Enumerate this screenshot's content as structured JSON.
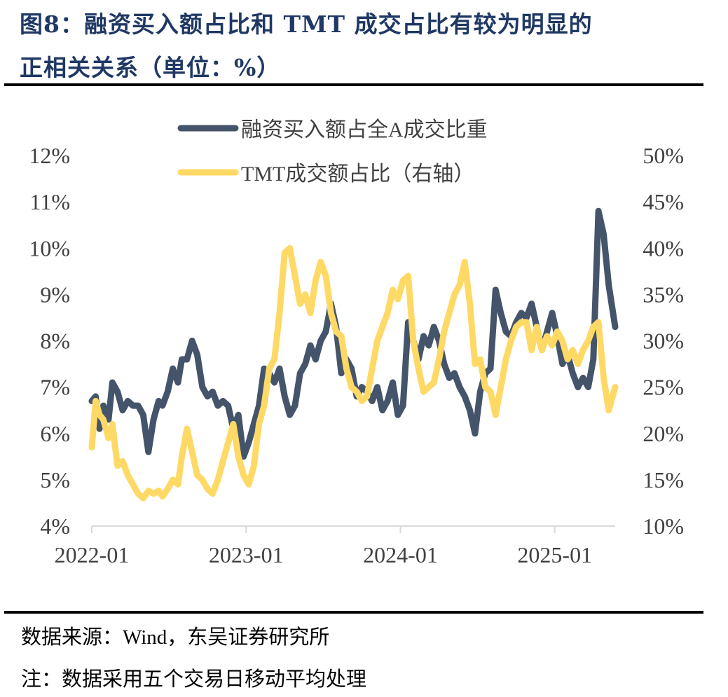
{
  "figure": {
    "title_line1": "图8：融资买入额占比和 TMT 成交占比有较为明显的",
    "title_line2": "正相关关系（单位：%）",
    "source": "数据来源：Wind，东吴证券研究所",
    "note": "注：数据采用五个交易日移动平均处理"
  },
  "colors": {
    "margin_series": "#44546a",
    "tmt_series": "#ffd966",
    "title": "#1f3864",
    "axis": "#d9d9d9",
    "tick_text": "#404040"
  },
  "chart_data": {
    "type": "line",
    "title": "融资买入额占比和 TMT 成交占比有较为明显的正相关关系（单位：%）",
    "xlabel": "",
    "ylabel": "",
    "x_ticks": [
      "2022-01",
      "2023-01",
      "2024-01",
      "2025-01"
    ],
    "x_range_months": [
      0,
      40.7
    ],
    "y_left": {
      "ticks": [
        "4%",
        "5%",
        "6%",
        "7%",
        "8%",
        "9%",
        "10%",
        "11%",
        "12%"
      ],
      "range": [
        4,
        12
      ]
    },
    "y_right": {
      "ticks": [
        "10%",
        "15%",
        "20%",
        "25%",
        "30%",
        "35%",
        "40%",
        "45%",
        "50%"
      ],
      "range": [
        10,
        50
      ]
    },
    "grid": false,
    "legend_position": "top-center",
    "series": [
      {
        "name": "融资买入额占全A成交比重",
        "axis": "left",
        "x_months": [
          0,
          0.3,
          0.6,
          0.9,
          1.3,
          1.6,
          2.0,
          2.4,
          2.8,
          3.2,
          3.6,
          4.0,
          4.4,
          4.8,
          5.2,
          5.5,
          5.9,
          6.3,
          6.7,
          7.0,
          7.4,
          7.8,
          8.2,
          8.6,
          9.0,
          9.4,
          9.8,
          10.2,
          10.6,
          11.0,
          11.4,
          11.8,
          12.2,
          12.6,
          13.0,
          13.4,
          13.8,
          14.2,
          14.6,
          15.0,
          15.4,
          15.8,
          16.2,
          16.6,
          17.0,
          17.4,
          17.8,
          18.2,
          18.6,
          19.0,
          19.4,
          19.8,
          20.2,
          20.6,
          21.0,
          21.4,
          21.8,
          22.2,
          22.6,
          23.0,
          23.4,
          23.8,
          24.2,
          24.6,
          25.0,
          25.4,
          25.8,
          26.2,
          26.6,
          27.0,
          27.4,
          27.8,
          28.2,
          28.6,
          29.0,
          29.4,
          29.8,
          30.2,
          30.6,
          31.0,
          31.4,
          31.8,
          32.2,
          32.6,
          33.0,
          33.4,
          33.8,
          34.2,
          34.6,
          35.0,
          35.4,
          35.8,
          36.2,
          36.6,
          37.0,
          37.4,
          37.8,
          38.2,
          38.6,
          39.0,
          39.4,
          39.8,
          40.2,
          40.7
        ],
        "values": [
          6.7,
          6.8,
          6.1,
          6.6,
          6.3,
          7.1,
          6.9,
          6.5,
          6.7,
          6.6,
          6.6,
          6.4,
          5.6,
          6.3,
          6.7,
          6.6,
          6.9,
          7.4,
          7.1,
          7.6,
          7.6,
          8.0,
          7.7,
          7.0,
          6.8,
          6.9,
          6.6,
          6.7,
          6.6,
          6.1,
          6.4,
          5.5,
          5.8,
          6.2,
          6.6,
          7.4,
          7.3,
          7.1,
          7.4,
          6.8,
          6.4,
          6.6,
          7.3,
          7.5,
          7.9,
          7.6,
          8.0,
          8.2,
          8.8,
          8.3,
          7.3,
          7.6,
          7.4,
          6.8,
          7.0,
          6.9,
          6.7,
          7.0,
          6.5,
          6.7,
          7.1,
          6.4,
          6.6,
          8.4,
          8.0,
          7.6,
          8.1,
          7.9,
          8.3,
          8.0,
          7.5,
          7.2,
          7.3,
          7.0,
          6.8,
          6.5,
          6.0,
          6.9,
          7.3,
          7.4,
          9.1,
          8.6,
          8.2,
          8.1,
          8.4,
          8.6,
          8.5,
          8.8,
          8.3,
          7.8,
          8.2,
          8.6,
          8.1,
          7.5,
          7.7,
          7.3,
          7.0,
          7.2,
          7.0,
          7.6,
          10.8,
          10.3,
          9.2,
          8.3
        ]
      },
      {
        "name": "TMT成交额占比（右轴）",
        "axis": "right",
        "x_months": [
          0,
          0.3,
          0.6,
          0.9,
          1.3,
          1.6,
          2.0,
          2.4,
          2.8,
          3.2,
          3.6,
          4.0,
          4.4,
          4.8,
          5.2,
          5.5,
          5.9,
          6.3,
          6.7,
          7.0,
          7.4,
          7.8,
          8.2,
          8.6,
          9.0,
          9.4,
          9.8,
          10.2,
          10.6,
          11.0,
          11.4,
          11.8,
          12.2,
          12.6,
          13.0,
          13.4,
          13.8,
          14.2,
          14.6,
          15.0,
          15.4,
          15.8,
          16.2,
          16.6,
          17.0,
          17.4,
          17.8,
          18.2,
          18.6,
          19.0,
          19.4,
          19.8,
          20.2,
          20.6,
          21.0,
          21.4,
          21.8,
          22.2,
          22.6,
          23.0,
          23.4,
          23.8,
          24.2,
          24.6,
          25.0,
          25.4,
          25.8,
          26.2,
          26.6,
          27.0,
          27.4,
          27.8,
          28.2,
          28.6,
          29.0,
          29.4,
          29.8,
          30.2,
          30.6,
          31.0,
          31.4,
          31.8,
          32.2,
          32.6,
          33.0,
          33.4,
          33.8,
          34.2,
          34.6,
          35.0,
          35.4,
          35.8,
          36.2,
          36.6,
          37.0,
          37.4,
          37.8,
          38.2,
          38.6,
          39.0,
          39.4,
          39.8,
          40.2,
          40.7
        ],
        "values": [
          18.5,
          23.5,
          22.0,
          21.5,
          19.5,
          21.0,
          16.5,
          17.0,
          15.5,
          14.5,
          13.5,
          13.0,
          13.8,
          13.5,
          13.8,
          13.2,
          14.0,
          15.0,
          14.5,
          17.5,
          20.5,
          18.0,
          15.5,
          15.0,
          14.0,
          13.5,
          15.0,
          17.0,
          19.0,
          21.0,
          17.5,
          15.5,
          14.5,
          16.5,
          21.0,
          23.0,
          27.0,
          28.0,
          33.0,
          39.5,
          40.0,
          37.0,
          34.0,
          35.0,
          33.0,
          36.5,
          38.5,
          37.0,
          33.0,
          31.0,
          30.5,
          27.0,
          25.0,
          24.5,
          23.5,
          24.0,
          27.0,
          30.0,
          31.5,
          33.0,
          35.5,
          34.5,
          36.5,
          37.0,
          30.0,
          27.0,
          24.5,
          25.0,
          25.5,
          28.0,
          31.0,
          33.0,
          35.0,
          36.0,
          38.5,
          34.0,
          27.5,
          28.0,
          25.0,
          24.5,
          22.0,
          25.0,
          28.0,
          30.0,
          31.5,
          32.0,
          32.0,
          29.0,
          31.5,
          29.0,
          30.5,
          29.5,
          31.0,
          30.0,
          28.0,
          29.0,
          27.5,
          29.0,
          30.0,
          31.5,
          32.0,
          26.0,
          22.5,
          25.0
        ]
      }
    ]
  }
}
